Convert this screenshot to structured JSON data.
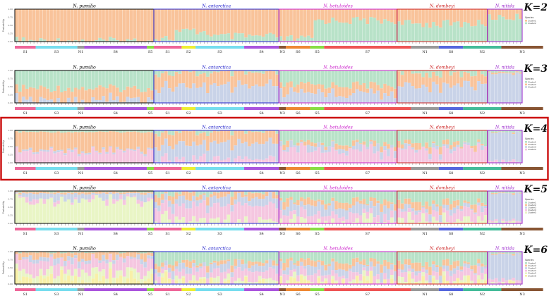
{
  "figure": {
    "species": [
      {
        "name": "N. pumilio",
        "color": "#000000",
        "count": 40
      },
      {
        "name": "N. antarctica",
        "color": "#2222cc",
        "count": 36
      },
      {
        "name": "N. betuloides",
        "color": "#cc22cc",
        "count": 34
      },
      {
        "name": "N. dombeyi",
        "color": "#cc2222",
        "count": 26
      },
      {
        "name": "N. nitida",
        "color": "#9922cc",
        "count": 10
      }
    ],
    "populations": [
      {
        "label": "S1",
        "count": 6,
        "color": "#ee6699"
      },
      {
        "label": "S3",
        "count": 12,
        "color": "#77ddee"
      },
      {
        "label": "N1",
        "count": 2,
        "color": "#999999"
      },
      {
        "label": "S4",
        "count": 18,
        "color": "#aa55dd"
      },
      {
        "label": "S5",
        "count": 2,
        "color": "#88dd44"
      },
      {
        "label": "S1",
        "count": 8,
        "color": "#ee6699"
      },
      {
        "label": "S2",
        "count": 4,
        "color": "#eeee33"
      },
      {
        "label": "S3",
        "count": 14,
        "color": "#77ddee"
      },
      {
        "label": "S4",
        "count": 10,
        "color": "#aa55dd"
      },
      {
        "label": "N3",
        "count": 2,
        "color": "#885533"
      },
      {
        "label": "S6",
        "count": 7,
        "color": "#ee8833"
      },
      {
        "label": "S5",
        "count": 4,
        "color": "#88dd44"
      },
      {
        "label": "S7",
        "count": 25,
        "color": "#ee5555"
      },
      {
        "label": "N1",
        "count": 8,
        "color": "#999999"
      },
      {
        "label": "S8",
        "count": 7,
        "color": "#5566dd"
      },
      {
        "label": "N2",
        "count": 11,
        "color": "#44bb99"
      },
      {
        "label": "N3",
        "count": 12,
        "color": "#885533"
      }
    ],
    "highlight_panel": "K=4",
    "highlight_color": "#cc1111",
    "y_axis_label": "Probability",
    "y_ticks": [
      "1.00",
      "0.75",
      "0.50",
      "0.25",
      "0.00"
    ],
    "legend_title": "Species"
  },
  "chart_data": [
    {
      "type": "bar",
      "stacked": true,
      "title": "K=2",
      "ylabel": "Probability",
      "ylim": [
        0,
        1
      ],
      "cluster_colors": [
        "#f9c39a",
        "#b8e2c8"
      ],
      "legend_entries": [
        "Cluster1",
        "Cluster2"
      ],
      "series": [
        {
          "color": "#f9c39a",
          "name": "Cluster1",
          "segments": [
            [
              0,
              40,
              0.98
            ],
            [
              40,
              46,
              0.9
            ],
            [
              46,
              56,
              0.7
            ],
            [
              56,
              76,
              0.85
            ],
            [
              76,
              86,
              0.92
            ],
            [
              86,
              110,
              0.35
            ],
            [
              110,
              136,
              0.45
            ],
            [
              136,
              146,
              0.25
            ]
          ]
        },
        {
          "color": "#b8e2c8",
          "name": "Cluster2",
          "segments": [
            [
              0,
              146,
              "rest"
            ]
          ]
        }
      ]
    },
    {
      "type": "bar",
      "stacked": true,
      "title": "K=3",
      "ylabel": "Probability",
      "ylim": [
        0,
        1
      ],
      "cluster_colors": [
        "#b8e2c8",
        "#f9c39a",
        "#c9d3e8"
      ],
      "legend_entries": [
        "Cluster1",
        "Cluster2",
        "Cluster3"
      ],
      "series": [
        {
          "color": "#b8e2c8",
          "name": "Cluster1",
          "segments": [
            [
              0,
              40,
              0.55
            ],
            [
              40,
              76,
              0.1
            ],
            [
              76,
              110,
              0.45
            ],
            [
              110,
              136,
              0.1
            ],
            [
              136,
              146,
              0.05
            ]
          ]
        },
        {
          "color": "#f9c39a",
          "name": "Cluster2",
          "segments": [
            [
              0,
              40,
              0.35
            ],
            [
              40,
              76,
              0.4
            ],
            [
              76,
              110,
              0.25
            ],
            [
              110,
              136,
              0.35
            ],
            [
              136,
              146,
              0.05
            ]
          ]
        },
        {
          "color": "#c9d3e8",
          "name": "Cluster3",
          "segments": [
            [
              0,
              146,
              "rest"
            ]
          ]
        }
      ]
    },
    {
      "type": "bar",
      "stacked": true,
      "title": "K=4",
      "ylabel": "Probability",
      "ylim": [
        0,
        1
      ],
      "cluster_colors": [
        "#b8e2c8",
        "#f9c39a",
        "#c9d3e8",
        "#f5c6e0"
      ],
      "legend_entries": [
        "Cluster1",
        "Cluster2",
        "Cluster3",
        "Cluster4"
      ],
      "series": [
        {
          "color": "#b8e2c8",
          "name": "Cluster1",
          "segments": [
            [
              0,
              40,
              0.05
            ],
            [
              40,
              76,
              0.08
            ],
            [
              76,
              110,
              0.4
            ],
            [
              110,
              136,
              0.4
            ],
            [
              136,
              146,
              0.05
            ]
          ]
        },
        {
          "color": "#f9c39a",
          "name": "Cluster2",
          "segments": [
            [
              0,
              40,
              0.55
            ],
            [
              40,
              76,
              0.35
            ],
            [
              76,
              110,
              0.08
            ],
            [
              110,
              136,
              0.1
            ],
            [
              136,
              146,
              0.02
            ]
          ]
        },
        {
          "color": "#c9d3e8",
          "name": "Cluster3",
          "segments": [
            [
              0,
              40,
              0.05
            ],
            [
              40,
              76,
              0.45
            ],
            [
              76,
              110,
              0.12
            ],
            [
              110,
              136,
              0.1
            ],
            [
              136,
              146,
              0.9
            ]
          ]
        },
        {
          "color": "#f5c6e0",
          "name": "Cluster4",
          "segments": [
            [
              0,
              146,
              "rest"
            ]
          ]
        }
      ]
    },
    {
      "type": "bar",
      "stacked": true,
      "title": "K=5",
      "ylabel": "Probability",
      "ylim": [
        0,
        1
      ],
      "cluster_colors": [
        "#b8e2c8",
        "#f9c39a",
        "#c9d3e8",
        "#f5c6e0",
        "#e9f5c5"
      ],
      "legend_entries": [
        "Cluster1",
        "Cluster2",
        "Cluster3",
        "Cluster4",
        "Cluster5"
      ],
      "series": [
        {
          "color": "#b8e2c8",
          "name": "Cluster1",
          "segments": [
            [
              0,
              40,
              0.03
            ],
            [
              40,
              76,
              0.1
            ],
            [
              76,
              110,
              0.3
            ],
            [
              110,
              136,
              0.35
            ],
            [
              136,
              146,
              0.05
            ]
          ]
        },
        {
          "color": "#f9c39a",
          "name": "Cluster2",
          "segments": [
            [
              0,
              40,
              0.05
            ],
            [
              40,
              76,
              0.15
            ],
            [
              76,
              110,
              0.15
            ],
            [
              110,
              136,
              0.15
            ],
            [
              136,
              146,
              0.03
            ]
          ]
        },
        {
          "color": "#c9d3e8",
          "name": "Cluster3",
          "segments": [
            [
              0,
              40,
              0.15
            ],
            [
              40,
              76,
              0.2
            ],
            [
              76,
              110,
              0.25
            ],
            [
              110,
              136,
              0.15
            ],
            [
              136,
              146,
              0.85
            ]
          ]
        },
        {
          "color": "#f5c6e0",
          "name": "Cluster4",
          "segments": [
            [
              0,
              40,
              0.07
            ],
            [
              40,
              76,
              0.45
            ],
            [
              76,
              110,
              0.25
            ],
            [
              110,
              136,
              0.25
            ],
            [
              136,
              146,
              0.05
            ]
          ]
        },
        {
          "color": "#e9f5c5",
          "name": "Cluster5",
          "segments": [
            [
              0,
              146,
              "rest"
            ]
          ]
        }
      ]
    },
    {
      "type": "bar",
      "stacked": true,
      "title": "K=6",
      "ylabel": "Probability",
      "ylim": [
        0,
        1
      ],
      "cluster_colors": [
        "#b8e2c8",
        "#f9c39a",
        "#c9d3e8",
        "#f5c6e0",
        "#e9f5c5",
        "#f8f0a8"
      ],
      "legend_entries": [
        "Cluster1",
        "Cluster2",
        "Cluster3",
        "Cluster4",
        "Cluster5",
        "Cluster6"
      ],
      "series": [
        {
          "color": "#b8e2c8",
          "name": "Cluster1",
          "segments": [
            [
              0,
              40,
              0.03
            ],
            [
              40,
              76,
              0.35
            ],
            [
              76,
              110,
              0.3
            ],
            [
              110,
              136,
              0.35
            ],
            [
              136,
              146,
              0.05
            ]
          ]
        },
        {
          "color": "#f9c39a",
          "name": "Cluster2",
          "segments": [
            [
              0,
              40,
              0.15
            ],
            [
              40,
              76,
              0.1
            ],
            [
              76,
              110,
              0.15
            ],
            [
              110,
              136,
              0.15
            ],
            [
              136,
              146,
              0.03
            ]
          ]
        },
        {
          "color": "#c9d3e8",
          "name": "Cluster3",
          "segments": [
            [
              0,
              40,
              0.1
            ],
            [
              40,
              76,
              0.15
            ],
            [
              76,
              110,
              0.2
            ],
            [
              110,
              136,
              0.15
            ],
            [
              136,
              146,
              0.8
            ]
          ]
        },
        {
          "color": "#f5c6e0",
          "name": "Cluster4",
          "segments": [
            [
              0,
              40,
              0.35
            ],
            [
              40,
              76,
              0.25
            ],
            [
              76,
              110,
              0.2
            ],
            [
              110,
              136,
              0.2
            ],
            [
              136,
              146,
              0.06
            ]
          ]
        },
        {
          "color": "#e9f5c5",
          "name": "Cluster5",
          "segments": [
            [
              0,
              40,
              0.22
            ],
            [
              40,
              76,
              0.1
            ],
            [
              76,
              110,
              0.1
            ],
            [
              110,
              136,
              0.1
            ],
            [
              136,
              146,
              0.03
            ]
          ]
        },
        {
          "color": "#f8f0a8",
          "name": "Cluster6",
          "segments": [
            [
              0,
              146,
              "rest"
            ]
          ]
        }
      ]
    }
  ]
}
